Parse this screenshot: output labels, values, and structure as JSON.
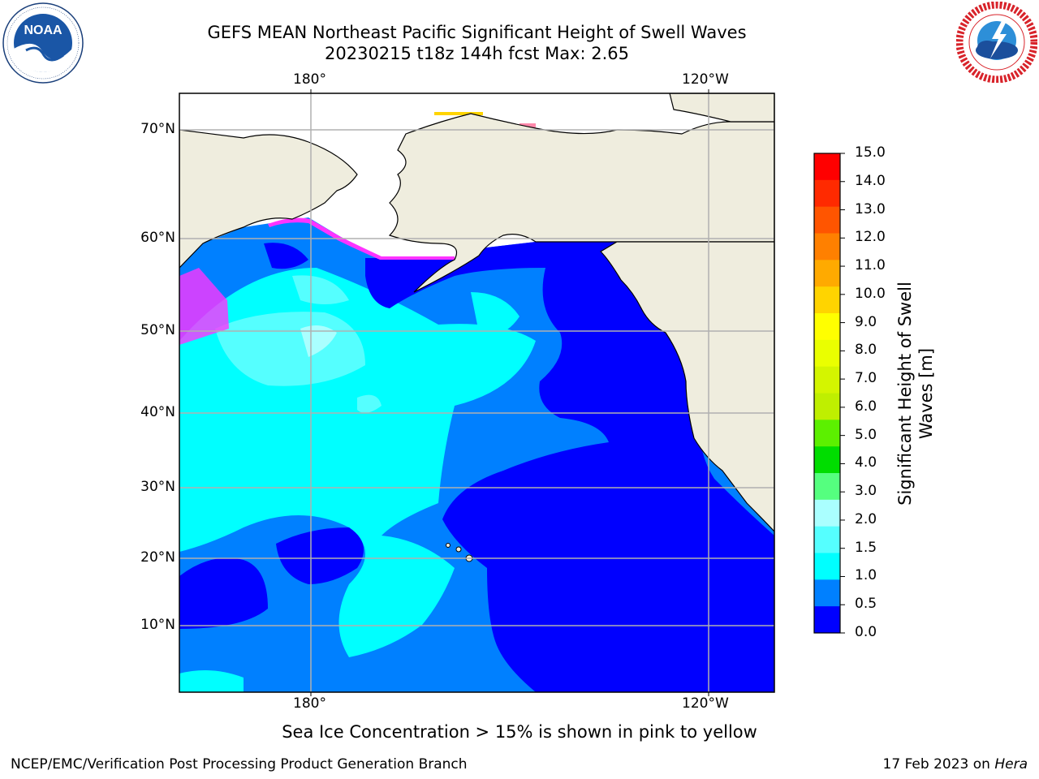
{
  "header": {
    "title_line1": "GEFS MEAN Northeast Pacific Significant Height of Swell Waves",
    "title_line2": "20230215 t18z 144h fcst   Max: 2.65"
  },
  "logos": {
    "left": {
      "text": "NOAA",
      "ring_text": "NATIONAL OCEANIC AND ATMOSPHERIC ADMINISTRATION · U.S. DEPARTMENT OF COMMERCE",
      "color": "#1a56a6"
    },
    "right": {
      "ring_text": "NATIONAL WEATHER SERVICE",
      "color": "#d8232a"
    }
  },
  "map": {
    "lon_ticks_top": [
      "180°",
      "120°W"
    ],
    "lon_ticks_bottom": [
      "180°",
      "120°W"
    ],
    "lat_ticks": [
      "70°N",
      "60°N",
      "50°N",
      "40°N",
      "30°N",
      "20°N",
      "10°N"
    ],
    "land_color": "#efedde",
    "ice_color": "#ff33ff",
    "grid_color": "#b0b0b0"
  },
  "colorbar": {
    "label_line1": "Significant Height of Swell",
    "label_line2": "Waves [m]",
    "ticks": [
      "15.0",
      "14.0",
      "13.0",
      "12.0",
      "11.0",
      "10.0",
      "9.0",
      "8.0",
      "7.0",
      "6.0",
      "5.0",
      "4.0",
      "3.0",
      "2.0",
      "1.5",
      "1.0",
      "0.5",
      "0.0"
    ],
    "colors_top_to_bottom": [
      "#ff0000",
      "#ff2a00",
      "#ff5500",
      "#ff8000",
      "#ffaa00",
      "#ffd400",
      "#ffff00",
      "#eaff00",
      "#d4f500",
      "#bfef00",
      "#5cf000",
      "#00dd00",
      "#55ff7f",
      "#aaffff",
      "#55ffff",
      "#00ffff",
      "#0080ff",
      "#0000ff"
    ]
  },
  "footer": {
    "note": "Sea Ice Concentration > 15% is shown in pink to yellow",
    "left": "NCEP/EMC/Verification Post Processing Product Generation Branch",
    "right_date": "17 Feb 2023 on ",
    "right_host": "Hera"
  }
}
